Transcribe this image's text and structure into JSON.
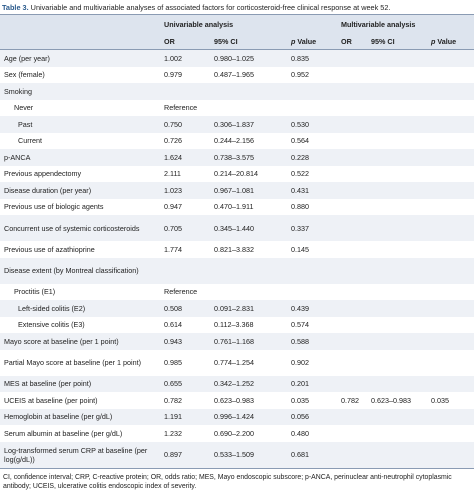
{
  "caption": {
    "label": "Table 3.",
    "text": "Univariable and multivariable analyses of associated factors for corticosteroid-free clinical response at week 52."
  },
  "headers": {
    "univariable": "Univariable analysis",
    "multivariable": "Multivariable analysis"
  },
  "columns": [
    "OR",
    "95% CI",
    "p Value"
  ],
  "rows": [
    {
      "label": "Age (per year)",
      "or": "1.002",
      "ci": "0.980–1.025",
      "p": "0.835"
    },
    {
      "label": "Sex (female)",
      "or": "0.979",
      "ci": "0.487–1.965",
      "p": "0.952"
    },
    {
      "label": "Smoking",
      "subrows": [
        {
          "label": "Never",
          "or": "Reference"
        },
        {
          "label": "Past",
          "or": "0.750",
          "ci": "0.306–1.837",
          "p": "0.530"
        },
        {
          "label": "Current",
          "or": "0.726",
          "ci": "0.244–2.156",
          "p": "0.564"
        }
      ]
    },
    {
      "label": "p-ANCA",
      "or": "1.624",
      "ci": "0.738–3.575",
      "p": "0.228"
    },
    {
      "label": "Previous appendectomy",
      "or": "2.111",
      "ci": "0.214–20.814",
      "p": "0.522"
    },
    {
      "label": "Disease duration (per year)",
      "or": "1.023",
      "ci": "0.967–1.081",
      "p": "0.431"
    },
    {
      "label": "Previous use of biologic agents",
      "or": "0.947",
      "ci": "0.470–1.911",
      "p": "0.880"
    },
    {
      "label": "Concurrent use of systemic corticosteroids",
      "or": "0.705",
      "ci": "0.345–1.440",
      "p": "0.337"
    },
    {
      "label": "Previous use of azathioprine",
      "or": "1.774",
      "ci": "0.821–3.832",
      "p": "0.145"
    },
    {
      "label": "Disease extent (by Montreal classification)",
      "subrows": [
        {
          "label": "Proctitis (E1)",
          "or": "Reference"
        },
        {
          "label": "Left-sided colitis (E2)",
          "or": "0.508",
          "ci": "0.091–2.831",
          "p": "0.439"
        },
        {
          "label": "Extensive colitis (E3)",
          "or": "0.614",
          "ci": "0.112–3.368",
          "p": "0.574"
        }
      ]
    },
    {
      "label": "Mayo score at baseline (per 1 point)",
      "or": "0.943",
      "ci": "0.761–1.168",
      "p": "0.588"
    },
    {
      "label": "Partial Mayo score at baseline (per 1 point)",
      "or": "0.985",
      "ci": "0.774–1.254",
      "p": "0.902"
    },
    {
      "label": "MES at baseline (per point)",
      "or": "0.655",
      "ci": "0.342–1.252",
      "p": "0.201"
    },
    {
      "label": "UCEIS at baseline (per point)",
      "or": "0.782",
      "ci": "0.623–0.983",
      "p": "0.035",
      "multi": {
        "or": "0.782",
        "ci": "0.623–0.983",
        "p": "0.035"
      }
    },
    {
      "label": "Hemoglobin at baseline (per g/dL)",
      "or": "1.191",
      "ci": "0.996–1.424",
      "p": "0.056"
    },
    {
      "label": "Serum albumin at baseline (per g/dL)",
      "or": "1.232",
      "ci": "0.690–2.200",
      "p": "0.480"
    },
    {
      "label": "Log-transformed serum CRP at baseline (per log(g/dL))",
      "or": "0.897",
      "ci": "0.533–1.509",
      "p": "0.681"
    }
  ],
  "footnote": "CI, confidence interval; CRP, C-reactive protein; OR, odds ratio; MES, Mayo endoscopic subscore; p-ANCA, perinuclear anti-neutrophil cytoplasmic antibody; UCEIS, ulcerative colitis endoscopic index of severity."
}
